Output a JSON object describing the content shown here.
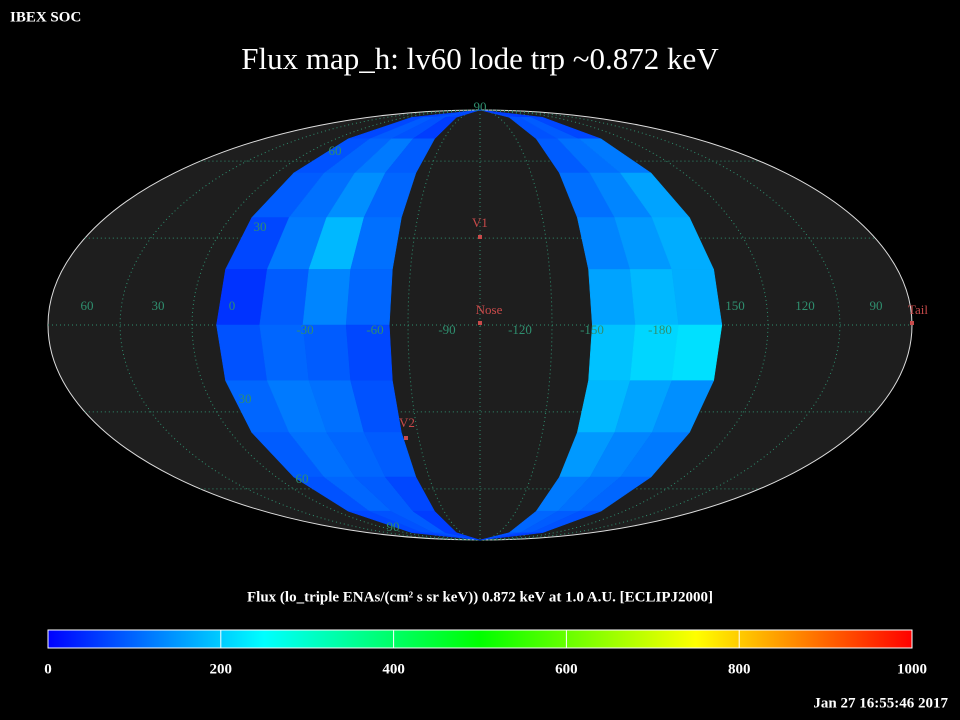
{
  "chart_data": {
    "type": "skymap",
    "header": "IBEX SOC",
    "title": "Flux   map_h: lv60 lode trp ~0.872 keV",
    "colorbar_label": "Flux (lo_triple ENAs/(cm² s sr keV))  0.872 keV at 1.0 A.U. [ECLIPJ2000]",
    "timestamp": "Jan 27 16:55:46 2017",
    "clim": [
      0,
      1000
    ],
    "cticks": [
      0,
      200,
      400,
      600,
      800,
      1000
    ],
    "colormap": [
      "#0000ff",
      "#00ffff",
      "#00ff00",
      "#ffff00",
      "#ff0000"
    ],
    "lon_labels": [
      "60",
      "30",
      "0",
      "-30",
      "-60",
      "-90",
      "-120",
      "-150",
      "-180",
      "150",
      "120",
      "90"
    ],
    "lat_labels": [
      "90",
      "60",
      "30",
      "30",
      "60",
      "90"
    ],
    "markers": [
      "V1",
      "Nose",
      "V2",
      "Tail"
    ],
    "swaths": [
      {
        "name": "left",
        "values": [
          [
            60,
            70,
            80,
            70
          ],
          [
            70,
            90,
            80,
            60
          ],
          [
            80,
            100,
            120,
            90
          ],
          [
            90,
            110,
            140,
            100
          ],
          [
            70,
            120,
            180,
            110
          ],
          [
            50,
            90,
            130,
            100
          ],
          [
            80,
            100,
            90,
            70
          ],
          [
            100,
            120,
            110,
            80
          ],
          [
            90,
            110,
            100,
            90
          ],
          [
            80,
            100,
            90,
            70
          ],
          [
            70,
            80,
            90,
            60
          ],
          [
            60,
            70,
            80,
            60
          ]
        ]
      },
      {
        "name": "right",
        "values": [
          [
            70,
            60,
            60
          ],
          [
            80,
            90,
            70
          ],
          [
            90,
            110,
            120
          ],
          [
            110,
            130,
            160
          ],
          [
            130,
            150,
            170
          ],
          [
            160,
            180,
            170
          ],
          [
            190,
            210,
            220
          ],
          [
            180,
            160,
            140
          ],
          [
            150,
            130,
            120
          ],
          [
            120,
            110,
            100
          ],
          [
            100,
            90,
            80
          ],
          [
            80,
            70,
            60
          ]
        ]
      }
    ]
  }
}
